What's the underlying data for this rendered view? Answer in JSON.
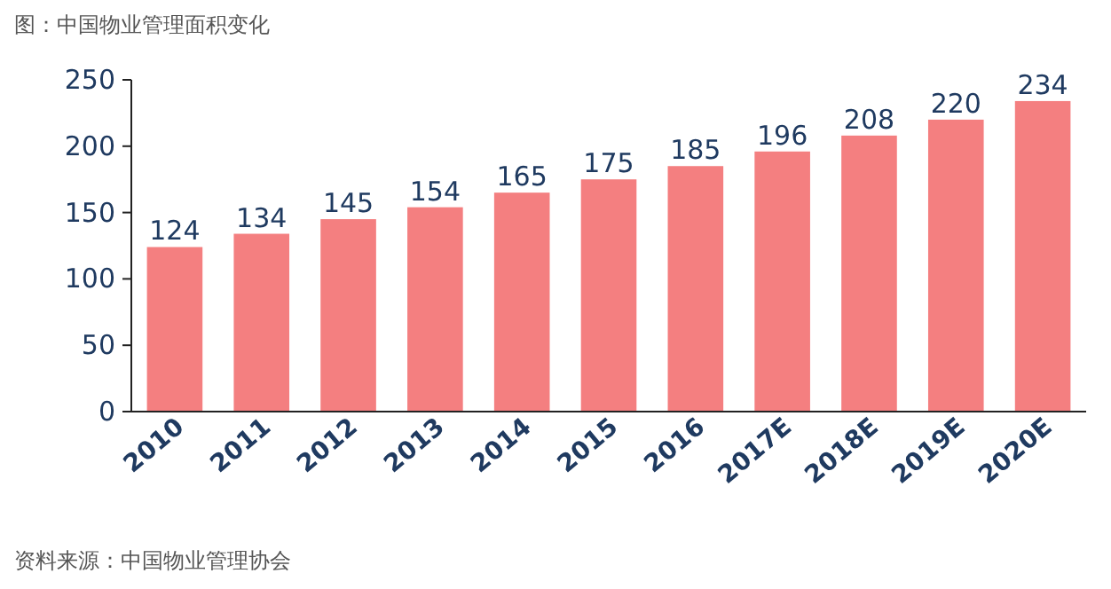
{
  "chart_data": {
    "type": "bar",
    "title": "图：中国物业管理面积变化",
    "categories": [
      "2010",
      "2011",
      "2012",
      "2013",
      "2014",
      "2015",
      "2016",
      "2017E",
      "2018E",
      "2019E",
      "2020E"
    ],
    "values": [
      124,
      134,
      145,
      154,
      165,
      175,
      185,
      196,
      208,
      220,
      234
    ],
    "color": "#f47f80",
    "ylim": [
      0,
      250
    ],
    "yticks": [
      0,
      50,
      100,
      150,
      200,
      250
    ],
    "data_labels": true,
    "annotations": [
      "资料来源：中国物业管理协会"
    ]
  }
}
